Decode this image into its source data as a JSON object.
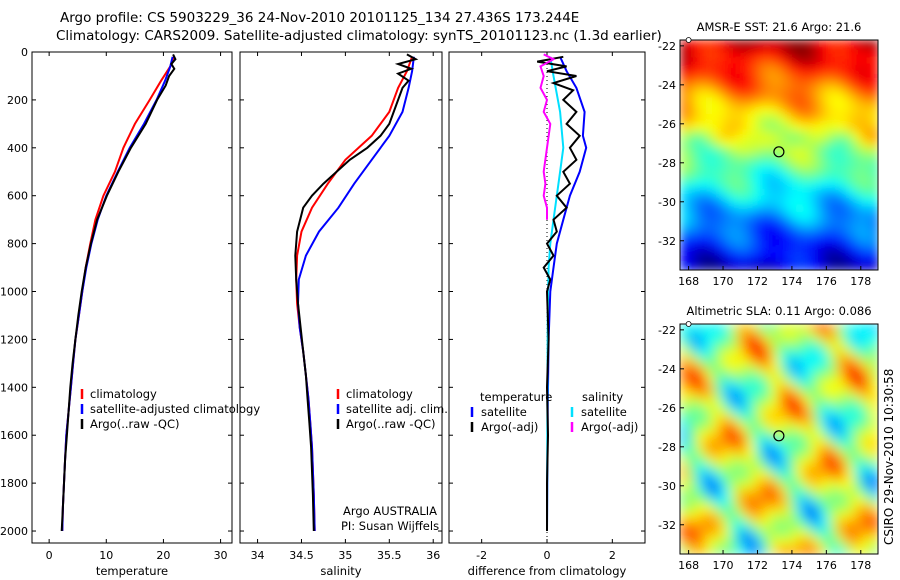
{
  "titles": {
    "line1": "Argo profile: CS 5903229_36 24-Nov-2010 20101125_134 27.436S 173.244E",
    "line2": "Climatology: CARS2009. Satellite-adjusted climatology: synTS_20101123.nc (1.3d earlier)"
  },
  "side_stamp": "CSIRO 29-Nov-2010 10:30:58",
  "colors": {
    "climatology": "#ff0000",
    "satellite_adjusted": "#0000ff",
    "argo": "#000000",
    "temp_satellite": "#00e0ff",
    "sal_argo": "#ff00ff"
  },
  "chart_data": [
    {
      "type": "line",
      "xlabel": "temperature",
      "ylabel": "",
      "xlim": [
        -3,
        32
      ],
      "ylim": [
        2050,
        0
      ],
      "x_ticks": [
        0,
        10,
        20,
        30
      ],
      "y_ticks": [
        0,
        200,
        400,
        600,
        800,
        1000,
        1200,
        1400,
        1600,
        1800,
        2000
      ],
      "legend": [
        "climatology",
        "satellite-adjusted climatology",
        "Argo(..raw -QC)"
      ],
      "legend_placement": "lower-right",
      "series": [
        {
          "name": "climatology",
          "color": "#ff0000",
          "points": [
            [
              21.8,
              20
            ],
            [
              21.2,
              60
            ],
            [
              19.6,
              120
            ],
            [
              17.6,
              200
            ],
            [
              15.0,
              300
            ],
            [
              13.0,
              400
            ],
            [
              11.5,
              500
            ],
            [
              9.5,
              600
            ],
            [
              8.1,
              700
            ],
            [
              7.2,
              800
            ],
            [
              6.4,
              900
            ],
            [
              5.8,
              1000
            ],
            [
              5.2,
              1100
            ],
            [
              4.6,
              1200
            ],
            [
              4.2,
              1300
            ],
            [
              3.8,
              1400
            ],
            [
              3.4,
              1500
            ],
            [
              3.0,
              1600
            ],
            [
              2.8,
              1700
            ],
            [
              2.6,
              1800
            ],
            [
              2.4,
              1900
            ],
            [
              2.3,
              2000
            ]
          ]
        },
        {
          "name": "satellite-adjusted climatology",
          "color": "#0000ff",
          "points": [
            [
              21.6,
              20
            ],
            [
              21.2,
              60
            ],
            [
              20.3,
              120
            ],
            [
              18.8,
              200
            ],
            [
              16.6,
              300
            ],
            [
              14.1,
              400
            ],
            [
              12.0,
              500
            ],
            [
              10.0,
              600
            ],
            [
              8.5,
              700
            ],
            [
              7.4,
              800
            ],
            [
              6.5,
              900
            ],
            [
              5.8,
              1000
            ],
            [
              5.2,
              1100
            ],
            [
              4.6,
              1200
            ],
            [
              4.2,
              1300
            ],
            [
              3.8,
              1400
            ],
            [
              3.4,
              1500
            ],
            [
              3.0,
              1600
            ],
            [
              2.8,
              1700
            ],
            [
              2.6,
              1800
            ],
            [
              2.4,
              1900
            ],
            [
              2.3,
              2000
            ]
          ]
        },
        {
          "name": "Argo(..raw -QC)",
          "color": "#000000",
          "points": [
            [
              21.7,
              10
            ],
            [
              22.1,
              30
            ],
            [
              21.4,
              50
            ],
            [
              21.9,
              70
            ],
            [
              21.0,
              100
            ],
            [
              20.4,
              140
            ],
            [
              18.9,
              200
            ],
            [
              16.9,
              300
            ],
            [
              14.3,
              400
            ],
            [
              12.1,
              500
            ],
            [
              10.1,
              600
            ],
            [
              8.4,
              700
            ],
            [
              7.3,
              800
            ],
            [
              6.4,
              900
            ],
            [
              5.7,
              1000
            ],
            [
              5.1,
              1100
            ],
            [
              4.6,
              1200
            ],
            [
              4.1,
              1300
            ],
            [
              3.7,
              1400
            ],
            [
              3.4,
              1500
            ],
            [
              3.1,
              1600
            ],
            [
              2.8,
              1700
            ],
            [
              2.6,
              1800
            ],
            [
              2.4,
              1900
            ],
            [
              2.2,
              2000
            ]
          ]
        }
      ]
    },
    {
      "type": "line",
      "xlabel": "salinity",
      "ylabel": "",
      "xlim": [
        33.8,
        36.1
      ],
      "ylim": [
        2050,
        0
      ],
      "x_ticks": [
        34,
        34.5,
        35,
        35.5,
        36
      ],
      "y_ticks": [
        0,
        200,
        400,
        600,
        800,
        1000,
        1200,
        1400,
        1600,
        1800,
        2000
      ],
      "legend": [
        "climatology",
        "satellite adj. clim.",
        "Argo(..raw -QC)"
      ],
      "legend_placement": "lower-right",
      "annotations": [
        "Argo AUSTRALIA",
        "PI: Susan Wijffels"
      ],
      "series": [
        {
          "name": "climatology",
          "color": "#ff0000",
          "points": [
            [
              35.76,
              20
            ],
            [
              35.7,
              80
            ],
            [
              35.6,
              150
            ],
            [
              35.5,
              250
            ],
            [
              35.3,
              350
            ],
            [
              35.0,
              450
            ],
            [
              34.8,
              550
            ],
            [
              34.62,
              650
            ],
            [
              34.5,
              750
            ],
            [
              34.45,
              850
            ],
            [
              34.44,
              950
            ],
            [
              34.45,
              1050
            ],
            [
              34.48,
              1150
            ],
            [
              34.52,
              1250
            ],
            [
              34.55,
              1350
            ],
            [
              34.58,
              1450
            ],
            [
              34.6,
              1550
            ],
            [
              34.62,
              1650
            ],
            [
              34.63,
              1750
            ],
            [
              34.64,
              1850
            ],
            [
              34.65,
              2000
            ]
          ]
        },
        {
          "name": "satellite adj. clim.",
          "color": "#0000ff",
          "points": [
            [
              35.78,
              20
            ],
            [
              35.76,
              80
            ],
            [
              35.72,
              150
            ],
            [
              35.65,
              250
            ],
            [
              35.5,
              350
            ],
            [
              35.3,
              450
            ],
            [
              35.1,
              550
            ],
            [
              34.92,
              650
            ],
            [
              34.7,
              750
            ],
            [
              34.55,
              850
            ],
            [
              34.47,
              950
            ],
            [
              34.46,
              1050
            ],
            [
              34.48,
              1150
            ],
            [
              34.52,
              1250
            ],
            [
              34.55,
              1350
            ],
            [
              34.58,
              1450
            ],
            [
              34.6,
              1550
            ],
            [
              34.62,
              1650
            ],
            [
              34.63,
              1750
            ],
            [
              34.64,
              1850
            ],
            [
              34.65,
              2000
            ]
          ]
        },
        {
          "name": "Argo(..raw -QC)",
          "color": "#000000",
          "points": [
            [
              35.7,
              10
            ],
            [
              35.8,
              30
            ],
            [
              35.6,
              50
            ],
            [
              35.75,
              70
            ],
            [
              35.6,
              90
            ],
            [
              35.72,
              120
            ],
            [
              35.65,
              150
            ],
            [
              35.6,
              200
            ],
            [
              35.55,
              250
            ],
            [
              35.5,
              300
            ],
            [
              35.4,
              350
            ],
            [
              35.25,
              400
            ],
            [
              35.05,
              450
            ],
            [
              34.9,
              500
            ],
            [
              34.75,
              550
            ],
            [
              34.62,
              600
            ],
            [
              34.52,
              650
            ],
            [
              34.45,
              750
            ],
            [
              34.43,
              850
            ],
            [
              34.44,
              950
            ],
            [
              34.46,
              1050
            ],
            [
              34.49,
              1150
            ],
            [
              34.52,
              1250
            ],
            [
              34.55,
              1350
            ],
            [
              34.57,
              1450
            ],
            [
              34.59,
              1550
            ],
            [
              34.61,
              1650
            ],
            [
              34.62,
              1750
            ],
            [
              34.63,
              1850
            ],
            [
              34.64,
              2000
            ]
          ]
        }
      ]
    },
    {
      "type": "line",
      "xlabel": "difference from climatology",
      "ylabel": "",
      "xlim": [
        -3,
        3
      ],
      "ylim": [
        2050,
        0
      ],
      "x_ticks": [
        -2,
        0,
        2
      ],
      "y_ticks": [
        0,
        200,
        400,
        600,
        800,
        1000,
        1200,
        1400,
        1600,
        1800,
        2000
      ],
      "legend_groups": [
        {
          "heading": "temperature",
          "entries": [
            "satellite",
            "Argo(-adj)"
          ]
        },
        {
          "heading": "salinity",
          "entries": [
            "satellite",
            "Argo(-adj)"
          ]
        }
      ],
      "legend_placement": "lower-center",
      "series": [
        {
          "name": "satellite",
          "group": "temperature",
          "color": "#0000ff",
          "points": [
            [
              0.4,
              20
            ],
            [
              0.6,
              80
            ],
            [
              0.9,
              150
            ],
            [
              1.15,
              250
            ],
            [
              1.1,
              350
            ],
            [
              1.2,
              400
            ],
            [
              1.0,
              500
            ],
            [
              0.7,
              600
            ],
            [
              0.5,
              700
            ],
            [
              0.3,
              800
            ],
            [
              0.2,
              900
            ],
            [
              0.1,
              1000
            ],
            [
              0.05,
              1200
            ],
            [
              0.02,
              1500
            ],
            [
              0.0,
              2000
            ]
          ]
        },
        {
          "name": "satellite",
          "group": "salinity",
          "color": "#00e0ff",
          "points": [
            [
              0.1,
              20
            ],
            [
              0.2,
              100
            ],
            [
              0.4,
              250
            ],
            [
              0.5,
              400
            ],
            [
              0.4,
              500
            ],
            [
              0.3,
              600
            ],
            [
              0.2,
              700
            ],
            [
              0.1,
              800
            ],
            [
              0.05,
              900
            ],
            [
              0.02,
              1100
            ],
            [
              0.0,
              2000
            ]
          ]
        },
        {
          "name": "Argo(-adj)",
          "group": "temperature",
          "color": "#000000",
          "points": [
            [
              0.5,
              20
            ],
            [
              -0.3,
              40
            ],
            [
              0.6,
              60
            ],
            [
              0.0,
              80
            ],
            [
              0.9,
              100
            ],
            [
              0.2,
              130
            ],
            [
              0.8,
              160
            ],
            [
              0.5,
              200
            ],
            [
              0.9,
              250
            ],
            [
              0.6,
              300
            ],
            [
              1.0,
              350
            ],
            [
              0.7,
              400
            ],
            [
              0.9,
              450
            ],
            [
              0.5,
              500
            ],
            [
              0.7,
              550
            ],
            [
              0.3,
              600
            ],
            [
              0.6,
              650
            ],
            [
              0.2,
              700
            ],
            [
              0.3,
              750
            ],
            [
              0.0,
              800
            ],
            [
              0.2,
              850
            ],
            [
              -0.1,
              900
            ],
            [
              0.1,
              950
            ],
            [
              0.0,
              1000
            ],
            [
              0.05,
              1200
            ],
            [
              0.0,
              1400
            ],
            [
              0.03,
              1600
            ],
            [
              0.0,
              1800
            ],
            [
              0.0,
              2000
            ]
          ]
        },
        {
          "name": "Argo(-adj)",
          "group": "salinity",
          "color": "#ff00ff",
          "points": [
            [
              -0.1,
              10
            ],
            [
              0.2,
              30
            ],
            [
              -0.2,
              60
            ],
            [
              -0.1,
              100
            ],
            [
              -0.2,
              150
            ],
            [
              0.0,
              200
            ],
            [
              -0.1,
              250
            ],
            [
              0.1,
              300
            ],
            [
              0.0,
              400
            ],
            [
              -0.1,
              500
            ],
            [
              -0.05,
              550
            ],
            [
              -0.1,
              600
            ],
            [
              0.0,
              650
            ],
            [
              0.0,
              700
            ]
          ]
        }
      ]
    },
    {
      "type": "heatmap",
      "title": "AMSR-E SST: 21.6 Argo: 21.6",
      "xlim": [
        167.5,
        179
      ],
      "ylim": [
        -33.5,
        -21.7
      ],
      "x_ticks": [
        168,
        170,
        172,
        174,
        176,
        178
      ],
      "y_ticks": [
        -22,
        -24,
        -26,
        -28,
        -30,
        -32
      ],
      "marker": {
        "lon": 173.244,
        "lat": -27.436
      }
    },
    {
      "type": "heatmap",
      "title": "Altimetric SLA: 0.11 Argo: 0.086",
      "xlim": [
        167.5,
        179
      ],
      "ylim": [
        -33.5,
        -21.7
      ],
      "x_ticks": [
        168,
        170,
        172,
        174,
        176,
        178
      ],
      "y_ticks": [
        -22,
        -24,
        -26,
        -28,
        -30,
        -32
      ],
      "marker": {
        "lon": 173.244,
        "lat": -27.436
      }
    }
  ]
}
